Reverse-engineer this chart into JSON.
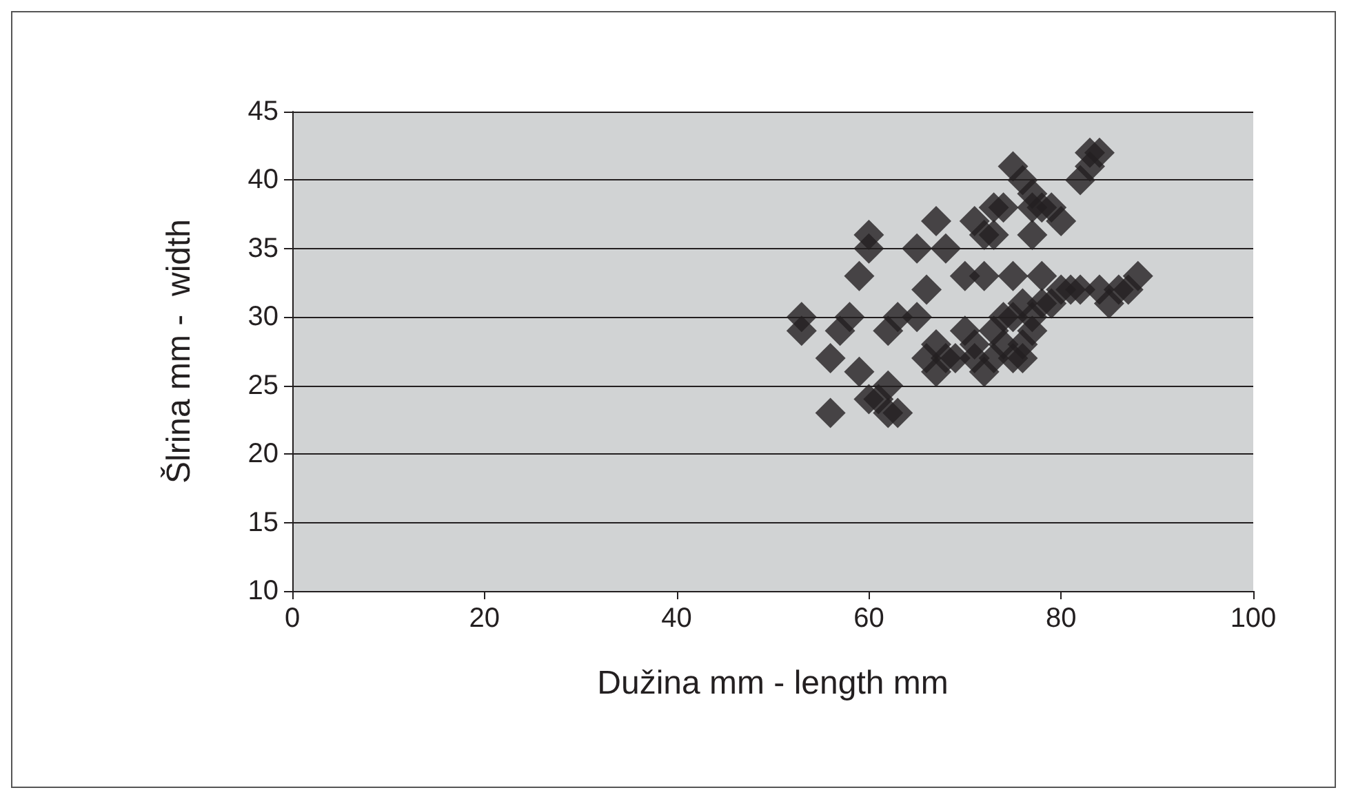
{
  "chart_data": {
    "type": "scatter",
    "xlabel": "Dužina mm - length mm",
    "ylabel": "Šlrina mm -  width",
    "x": [
      53,
      53,
      56,
      56,
      57,
      58,
      59,
      59,
      60,
      60,
      60,
      61,
      62,
      62,
      63,
      62,
      63,
      65,
      65,
      66,
      67,
      68,
      66,
      67,
      67,
      68,
      69,
      70,
      70,
      71,
      72,
      72,
      73,
      71,
      72,
      73,
      73,
      74,
      75,
      75,
      75,
      75,
      76,
      77,
      77,
      77,
      78,
      78,
      79,
      80,
      76,
      77,
      78,
      79,
      80,
      81,
      82,
      82,
      83,
      83,
      84,
      84,
      85,
      86,
      87,
      88,
      74,
      76,
      77,
      74,
      71,
      73,
      76
    ],
    "values": [
      30,
      29,
      27,
      23,
      29,
      30,
      33,
      26,
      36,
      35,
      24,
      24,
      25,
      23,
      23,
      29,
      30,
      35,
      30,
      32,
      37,
      35,
      27,
      26,
      28,
      27,
      27,
      29,
      33,
      37,
      33,
      36,
      36,
      28,
      26,
      29,
      38,
      38,
      41,
      33,
      27,
      30,
      40,
      39,
      36,
      38,
      33,
      38,
      38,
      37,
      28,
      29,
      31,
      31,
      32,
      32,
      32,
      40,
      41,
      42,
      42,
      32,
      31,
      32,
      32,
      33,
      30,
      31,
      30,
      28,
      27,
      27,
      27
    ],
    "color": "#231f20",
    "marker": "diamond",
    "xlim": [
      0,
      100
    ],
    "xticks": [
      0,
      20,
      40,
      60,
      80,
      100
    ],
    "ylim": [
      10,
      45
    ],
    "yticks": [
      10,
      15,
      20,
      25,
      30,
      35,
      40,
      45
    ],
    "grid": "y"
  }
}
